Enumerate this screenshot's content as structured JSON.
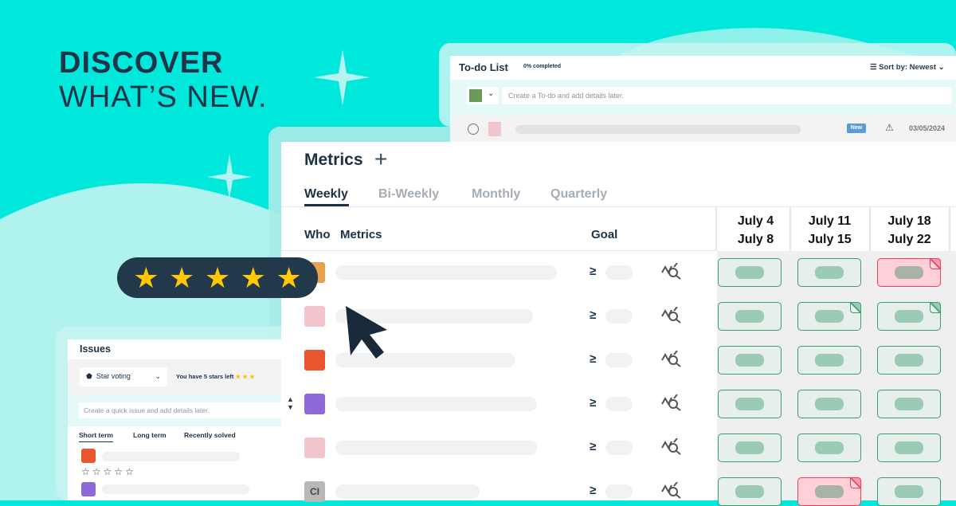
{
  "headline": {
    "line1": "DISCOVER",
    "line2": "WHAT’S NEW."
  },
  "todo": {
    "title": "To-do List",
    "progress": "0% completed",
    "sort_label": "Sort by: Newest",
    "input_placeholder": "Create a To-do and add details later.",
    "item": {
      "badge": "New",
      "date": "03/05/2024"
    }
  },
  "metrics": {
    "title": "Metrics",
    "add_icon": "plus-icon",
    "tabs": [
      {
        "label": "Weekly",
        "active": true
      },
      {
        "label": "Bi-Weekly"
      },
      {
        "label": "Monthly"
      },
      {
        "label": "Quarterly"
      }
    ],
    "columns": {
      "who": "Who",
      "metrics": "Metrics",
      "goal": "Goal"
    },
    "weeks": [
      {
        "start": "July 4",
        "end": "July 8"
      },
      {
        "start": "July 11",
        "end": "July 15"
      },
      {
        "start": "July 18",
        "end": "July 22"
      }
    ],
    "goal_operator": "≥",
    "rows": [
      {
        "avatar": "photo",
        "cells": [
          {
            "status": "ok"
          },
          {
            "status": "ok"
          },
          {
            "status": "miss",
            "note": true
          }
        ]
      },
      {
        "avatar": "photo",
        "cells": [
          {
            "status": "ok"
          },
          {
            "status": "ok",
            "note": true
          },
          {
            "status": "ok",
            "note": true
          }
        ]
      },
      {
        "avatar": "photo",
        "cells": [
          {
            "status": "ok"
          },
          {
            "status": "ok"
          },
          {
            "status": "ok"
          }
        ]
      },
      {
        "avatar": "photo",
        "cells": [
          {
            "status": "ok"
          },
          {
            "status": "ok"
          },
          {
            "status": "ok"
          }
        ]
      },
      {
        "avatar": "photo",
        "cells": [
          {
            "status": "ok"
          },
          {
            "status": "ok"
          },
          {
            "status": "ok"
          }
        ]
      },
      {
        "avatar": "CI",
        "cells": [
          {
            "status": "ok"
          },
          {
            "status": "miss",
            "note": true
          },
          {
            "status": "ok"
          }
        ]
      }
    ]
  },
  "rating": {
    "stars": 5,
    "max": 5,
    "color": "#ffc800"
  },
  "issues": {
    "title": "Issues",
    "voting_select": "Star voting",
    "stars_left": "You have 5 stars left",
    "input_placeholder": "Create a quick issue and add details later.",
    "tabs": [
      "Short term",
      "Long term",
      "Recently solved"
    ]
  },
  "colors": {
    "background": "#00e8dc",
    "ok": "#3a9e6e",
    "miss": "#ef3d5c"
  }
}
